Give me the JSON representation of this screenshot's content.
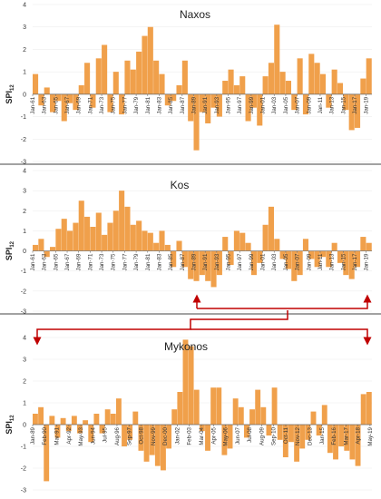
{
  "figure": {
    "ylabel_main": "SPI",
    "ylabel_sub": "12",
    "bar_color": "#f0a04b",
    "arrow_color": "#c00000",
    "divider_color": "#444444"
  },
  "chart_data": [
    {
      "type": "bar",
      "title": "Naxos",
      "ylabel": "SPI12",
      "ylim": [
        -3,
        4
      ],
      "yticks": [
        "4",
        "3",
        "2",
        "1",
        "0",
        "-1",
        "-2",
        "-3"
      ],
      "x_range": [
        1961.0,
        2020.0
      ],
      "x_labels": [
        "Jan-61",
        "Jan-63",
        "Jan-65",
        "Jan-67",
        "Jan-69",
        "Jan-71",
        "Jan-73",
        "Jan-75",
        "Jan-77",
        "Jan-79",
        "Jan-81",
        "Jan-83",
        "Jan-85",
        "Jan-87",
        "Jan-89",
        "Jan-91",
        "Jan-93",
        "Jan-95",
        "Jan-97",
        "Jan-99",
        "Jan-01",
        "Jan-03",
        "Jan-05",
        "Jan-07",
        "Jan-09",
        "Jan-11",
        "Jan-13",
        "Jan-15",
        "Jan-17",
        "Jan-19"
      ],
      "x_values": [
        1961,
        1963,
        1965,
        1967,
        1969,
        1971,
        1973,
        1975,
        1977,
        1979,
        1981,
        1983,
        1985,
        1987,
        1989,
        1991,
        1993,
        1995,
        1997,
        1999,
        2001,
        2003,
        2005,
        2007,
        2009,
        2011,
        2013,
        2015,
        2017,
        2019
      ],
      "series_points": [
        [
          1961.0,
          0.9
        ],
        [
          1962.0,
          -0.5
        ],
        [
          1963.0,
          0.3
        ],
        [
          1964.0,
          -0.8
        ],
        [
          1965.0,
          -0.3
        ],
        [
          1966.0,
          -1.2
        ],
        [
          1967.0,
          -0.4
        ],
        [
          1968.0,
          -0.7
        ],
        [
          1969.0,
          0.4
        ],
        [
          1970.0,
          1.4
        ],
        [
          1971.0,
          -0.6
        ],
        [
          1972.0,
          1.6
        ],
        [
          1973.0,
          2.2
        ],
        [
          1974.0,
          -0.8
        ],
        [
          1975.0,
          1.0
        ],
        [
          1976.0,
          -0.9
        ],
        [
          1977.0,
          1.5
        ],
        [
          1978.0,
          1.1
        ],
        [
          1979.0,
          1.9
        ],
        [
          1980.0,
          2.6
        ],
        [
          1981.0,
          3.0
        ],
        [
          1982.0,
          1.5
        ],
        [
          1983.0,
          0.9
        ],
        [
          1984.0,
          -0.5
        ],
        [
          1985.0,
          -0.3
        ],
        [
          1986.0,
          0.4
        ],
        [
          1987.0,
          1.5
        ],
        [
          1988.0,
          -1.2
        ],
        [
          1989.0,
          -2.5
        ],
        [
          1990.0,
          -0.8
        ],
        [
          1991.0,
          -1.3
        ],
        [
          1992.0,
          -0.6
        ],
        [
          1993.0,
          -1.0
        ],
        [
          1994.0,
          0.6
        ],
        [
          1995.0,
          1.1
        ],
        [
          1996.0,
          0.4
        ],
        [
          1997.0,
          0.8
        ],
        [
          1998.0,
          -1.2
        ],
        [
          1999.0,
          -0.6
        ],
        [
          2000.0,
          -1.4
        ],
        [
          2001.0,
          0.8
        ],
        [
          2002.0,
          1.4
        ],
        [
          2003.0,
          3.1
        ],
        [
          2004.0,
          1.0
        ],
        [
          2005.0,
          0.6
        ],
        [
          2006.0,
          -0.7
        ],
        [
          2007.0,
          1.6
        ],
        [
          2008.0,
          -0.9
        ],
        [
          2009.0,
          1.8
        ],
        [
          2010.0,
          1.4
        ],
        [
          2011.0,
          0.9
        ],
        [
          2012.0,
          -0.6
        ],
        [
          2013.0,
          1.1
        ],
        [
          2014.0,
          0.5
        ],
        [
          2015.0,
          -0.7
        ],
        [
          2016.0,
          -1.6
        ],
        [
          2017.0,
          -1.5
        ],
        [
          2018.0,
          0.7
        ],
        [
          2019.0,
          1.6
        ]
      ]
    },
    {
      "type": "bar",
      "title": "Kos",
      "ylabel": "SPI12",
      "ylim": [
        -3,
        4
      ],
      "yticks": [
        "4",
        "3",
        "2",
        "1",
        "0",
        "-1",
        "-2",
        "-3"
      ],
      "x_range": [
        1961.0,
        2020.0
      ],
      "x_labels": [
        "Jan-61",
        "Jan-63",
        "Jan-65",
        "Jan-67",
        "Jan-69",
        "Jan-71",
        "Jan-73",
        "Jan-75",
        "Jan-77",
        "Jan-79",
        "Jan-81",
        "Jan-83",
        "Jan-85",
        "Jan-87",
        "Jan-89",
        "Jan-91",
        "Jan-93",
        "Jan-95",
        "Jan-97",
        "Jan-99",
        "Jan-01",
        "Jan-03",
        "Jan-05",
        "Jan-07",
        "Jan-09",
        "Jan-11",
        "Jan-13",
        "Jan-15",
        "Jan-17",
        "Jan-19"
      ],
      "x_values": [
        1961,
        1963,
        1965,
        1967,
        1969,
        1971,
        1973,
        1975,
        1977,
        1979,
        1981,
        1983,
        1985,
        1987,
        1989,
        1991,
        1993,
        1995,
        1997,
        1999,
        2001,
        2003,
        2005,
        2007,
        2009,
        2011,
        2013,
        2015,
        2017,
        2019
      ],
      "series_points": [
        [
          1961.0,
          0.3
        ],
        [
          1962.0,
          0.6
        ],
        [
          1963.0,
          -0.3
        ],
        [
          1964.0,
          0.2
        ],
        [
          1965.0,
          1.1
        ],
        [
          1966.0,
          1.6
        ],
        [
          1967.0,
          1.0
        ],
        [
          1968.0,
          1.4
        ],
        [
          1969.0,
          2.5
        ],
        [
          1970.0,
          1.7
        ],
        [
          1971.0,
          1.2
        ],
        [
          1972.0,
          1.9
        ],
        [
          1973.0,
          0.8
        ],
        [
          1974.0,
          1.4
        ],
        [
          1975.0,
          2.0
        ],
        [
          1976.0,
          3.0
        ],
        [
          1977.0,
          2.2
        ],
        [
          1978.0,
          1.3
        ],
        [
          1979.0,
          1.5
        ],
        [
          1980.0,
          1.0
        ],
        [
          1981.0,
          0.9
        ],
        [
          1982.0,
          0.4
        ],
        [
          1983.0,
          1.0
        ],
        [
          1984.0,
          0.3
        ],
        [
          1985.0,
          -0.8
        ],
        [
          1986.0,
          0.5
        ],
        [
          1987.0,
          -0.8
        ],
        [
          1988.0,
          -1.4
        ],
        [
          1989.0,
          -1.5
        ],
        [
          1990.0,
          -1.2
        ],
        [
          1991.0,
          -1.5
        ],
        [
          1992.0,
          -1.8
        ],
        [
          1993.0,
          -1.2
        ],
        [
          1994.0,
          0.7
        ],
        [
          1995.0,
          -0.7
        ],
        [
          1996.0,
          1.0
        ],
        [
          1997.0,
          0.9
        ],
        [
          1998.0,
          0.4
        ],
        [
          1999.0,
          -1.2
        ],
        [
          2000.0,
          -0.6
        ],
        [
          2001.0,
          1.3
        ],
        [
          2002.0,
          2.2
        ],
        [
          2003.0,
          0.6
        ],
        [
          2004.0,
          -0.4
        ],
        [
          2005.0,
          -0.9
        ],
        [
          2006.0,
          -1.5
        ],
        [
          2007.0,
          -1.2
        ],
        [
          2008.0,
          0.6
        ],
        [
          2009.0,
          -0.4
        ],
        [
          2010.0,
          -0.8
        ],
        [
          2011.0,
          -0.3
        ],
        [
          2012.0,
          -0.8
        ],
        [
          2013.0,
          0.4
        ],
        [
          2014.0,
          -0.6
        ],
        [
          2015.0,
          -1.2
        ],
        [
          2016.0,
          -1.4
        ],
        [
          2017.0,
          -0.8
        ],
        [
          2018.0,
          0.7
        ],
        [
          2019.0,
          0.4
        ]
      ]
    },
    {
      "type": "bar",
      "title": "Mykonos",
      "ylabel": "SPI12",
      "ylim": [
        -3,
        4
      ],
      "yticks": [
        "4",
        "3",
        "2",
        "1",
        "0",
        "-1",
        "-2",
        "-3"
      ],
      "x_range": [
        1989.0,
        2019.5
      ],
      "x_labels": [
        "Jan-89",
        "Feb-90",
        "Mar-91",
        "Apr-92",
        "May-93",
        "Jun-94",
        "Jul-95",
        "Aug-96",
        "Sep-97",
        "Oct-98",
        "Nov-99",
        "Dec-00",
        "Jan-02",
        "Feb-03",
        "Mar-04",
        "Apr-05",
        "May-06",
        "Jun-07",
        "Jul-08",
        "Aug-09",
        "Sep-10",
        "Oct-11",
        "Nov-12",
        "Dec-13",
        "Jan-15",
        "Feb-16",
        "Mar-17",
        "Apr-18",
        "May-19"
      ],
      "x_values": [
        1989.0,
        1990.08,
        1991.17,
        1992.25,
        1993.33,
        1994.42,
        1995.5,
        1996.58,
        1997.67,
        1998.75,
        1999.83,
        2000.92,
        2002.0,
        2003.08,
        2004.17,
        2005.25,
        2006.33,
        2007.42,
        2008.5,
        2009.58,
        2010.67,
        2011.75,
        2012.83,
        2013.92,
        2015.0,
        2016.08,
        2017.17,
        2018.25,
        2019.33
      ],
      "series_points": [
        [
          1989.0,
          0.5
        ],
        [
          1989.5,
          0.8
        ],
        [
          1990.0,
          -2.6
        ],
        [
          1990.5,
          0.4
        ],
        [
          1991.0,
          -0.6
        ],
        [
          1991.5,
          0.3
        ],
        [
          1992.0,
          -0.3
        ],
        [
          1992.5,
          0.4
        ],
        [
          1993.0,
          -0.4
        ],
        [
          1993.5,
          0.2
        ],
        [
          1994.0,
          -0.8
        ],
        [
          1994.5,
          0.5
        ],
        [
          1995.0,
          -0.4
        ],
        [
          1995.5,
          0.7
        ],
        [
          1996.0,
          0.5
        ],
        [
          1996.5,
          1.2
        ],
        [
          1997.0,
          -1.0
        ],
        [
          1997.5,
          -0.7
        ],
        [
          1998.0,
          0.6
        ],
        [
          1998.5,
          -1.2
        ],
        [
          1999.0,
          -1.7
        ],
        [
          1999.5,
          -1.4
        ],
        [
          2000.0,
          -1.9
        ],
        [
          2000.5,
          -2.1
        ],
        [
          2001.0,
          -1.1
        ],
        [
          2001.5,
          0.7
        ],
        [
          2002.0,
          1.5
        ],
        [
          2002.5,
          3.9
        ],
        [
          2003.0,
          3.6
        ],
        [
          2003.5,
          1.6
        ],
        [
          2004.0,
          -0.3
        ],
        [
          2004.5,
          -1.2
        ],
        [
          2005.0,
          1.7
        ],
        [
          2005.5,
          1.7
        ],
        [
          2006.0,
          -1.4
        ],
        [
          2006.5,
          -1.1
        ],
        [
          2007.0,
          1.2
        ],
        [
          2007.5,
          0.8
        ],
        [
          2008.0,
          -0.6
        ],
        [
          2008.5,
          0.7
        ],
        [
          2009.0,
          1.6
        ],
        [
          2009.5,
          0.8
        ],
        [
          2010.0,
          -0.5
        ],
        [
          2010.5,
          1.7
        ],
        [
          2011.0,
          -0.7
        ],
        [
          2011.5,
          -1.5
        ],
        [
          2012.0,
          -0.8
        ],
        [
          2012.5,
          -1.7
        ],
        [
          2013.0,
          -1.1
        ],
        [
          2013.5,
          -0.7
        ],
        [
          2014.0,
          0.6
        ],
        [
          2014.5,
          -0.5
        ],
        [
          2015.0,
          0.9
        ],
        [
          2015.5,
          -1.3
        ],
        [
          2016.0,
          -1.6
        ],
        [
          2016.5,
          -1.0
        ],
        [
          2017.0,
          -1.2
        ],
        [
          2017.5,
          -1.6
        ],
        [
          2018.0,
          -1.9
        ],
        [
          2018.5,
          1.4
        ],
        [
          2019.0,
          1.5
        ]
      ]
    }
  ]
}
